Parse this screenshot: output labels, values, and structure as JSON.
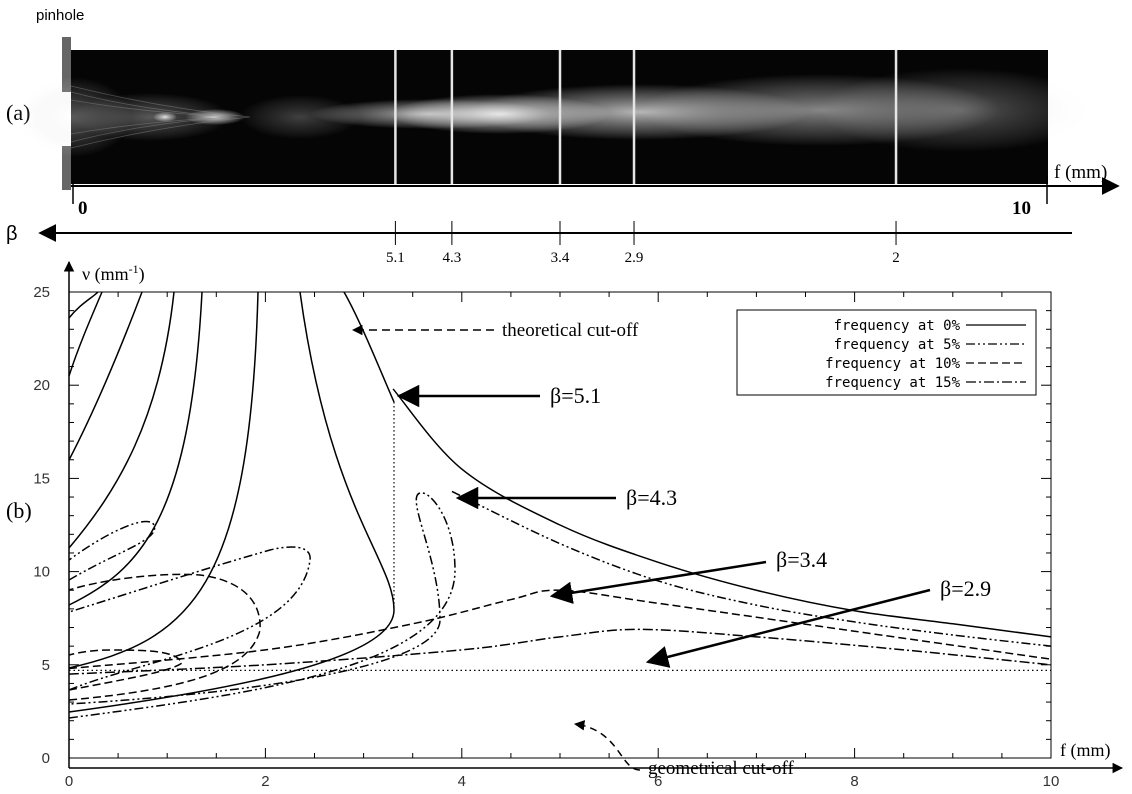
{
  "panel_a": {
    "pinhole_label": "pinhole",
    "panel_label": "(a)",
    "axis_label": "f (mm)",
    "axis_start": "0",
    "axis_end": "10",
    "beta_symbol": "β",
    "beta_marks": [
      {
        "f": 3.31,
        "label": "5.1"
      },
      {
        "f": 3.89,
        "label": "4.3"
      },
      {
        "f": 5.0,
        "label": "3.4"
      },
      {
        "f": 5.76,
        "label": "2.9"
      },
      {
        "f": 8.45,
        "label": "2"
      }
    ]
  },
  "panel_b": {
    "panel_label": "(b)",
    "ylabel_main": "ν (mm",
    "ylabel_sup": "-1",
    "ylabel_close": ")",
    "xlabel": "f (mm)",
    "annotations": {
      "theoretical": "theoretical cut-off",
      "geometrical": "geometrical cut-off",
      "beta51": "β=5.1",
      "beta43": "β=4.3",
      "beta34": "β=3.4",
      "beta29": "β=2.9"
    }
  },
  "chart_data": {
    "type": "line",
    "title": "",
    "xlabel": "f (mm)",
    "ylabel": "ν (mm-1)",
    "xlim": [
      0,
      10
    ],
    "ylim": [
      0,
      25
    ],
    "xticks": [
      0,
      2,
      4,
      6,
      8,
      10
    ],
    "yticks": [
      0,
      5,
      10,
      15,
      20,
      25
    ],
    "legend_position": "top-right",
    "series": [
      {
        "name": "frequency at 0%",
        "dash": "solid",
        "points": [
          [
            3.3,
            19.8
          ],
          [
            4.0,
            15.5
          ],
          [
            5.0,
            12.5
          ],
          [
            6.0,
            10.5
          ],
          [
            7.0,
            9.0
          ],
          [
            8.0,
            7.9
          ],
          [
            9.0,
            7.2
          ],
          [
            10.0,
            6.5
          ]
        ]
      },
      {
        "name": "frequency at 5%",
        "dash": "dashdotdot",
        "points": [
          [
            3.9,
            14.3
          ],
          [
            5.0,
            11.5
          ],
          [
            6.0,
            9.5
          ],
          [
            7.0,
            8.2
          ],
          [
            8.0,
            7.3
          ],
          [
            9.0,
            6.6
          ],
          [
            10.0,
            6.0
          ]
        ]
      },
      {
        "name": "frequency at 10%",
        "dash": "dashed",
        "points": [
          [
            0.0,
            4.8
          ],
          [
            2.0,
            5.8
          ],
          [
            3.5,
            7.2
          ],
          [
            4.5,
            8.5
          ],
          [
            5.0,
            9.0
          ],
          [
            6.0,
            8.3
          ],
          [
            8.0,
            6.8
          ],
          [
            10.0,
            5.3
          ]
        ]
      },
      {
        "name": "frequency at 15%",
        "dash": "dashdot",
        "points": [
          [
            0.0,
            4.5
          ],
          [
            2.0,
            5.0
          ],
          [
            4.0,
            5.8
          ],
          [
            5.0,
            6.5
          ],
          [
            5.8,
            6.9
          ],
          [
            7.0,
            6.5
          ],
          [
            8.5,
            5.8
          ],
          [
            10.0,
            5.0
          ]
        ]
      }
    ],
    "reference_lines": [
      {
        "name": "geometrical cut-off",
        "y": 4.7
      }
    ],
    "beta_markers": [
      {
        "label": "β=5.1",
        "f": 3.3,
        "nu": 19.8
      },
      {
        "label": "β=4.3",
        "f": 3.9,
        "nu": 14.3
      },
      {
        "label": "β=3.4",
        "f": 4.85,
        "nu": 9.0
      },
      {
        "label": "β=2.9",
        "f": 5.8,
        "nu": 6.9
      }
    ]
  }
}
